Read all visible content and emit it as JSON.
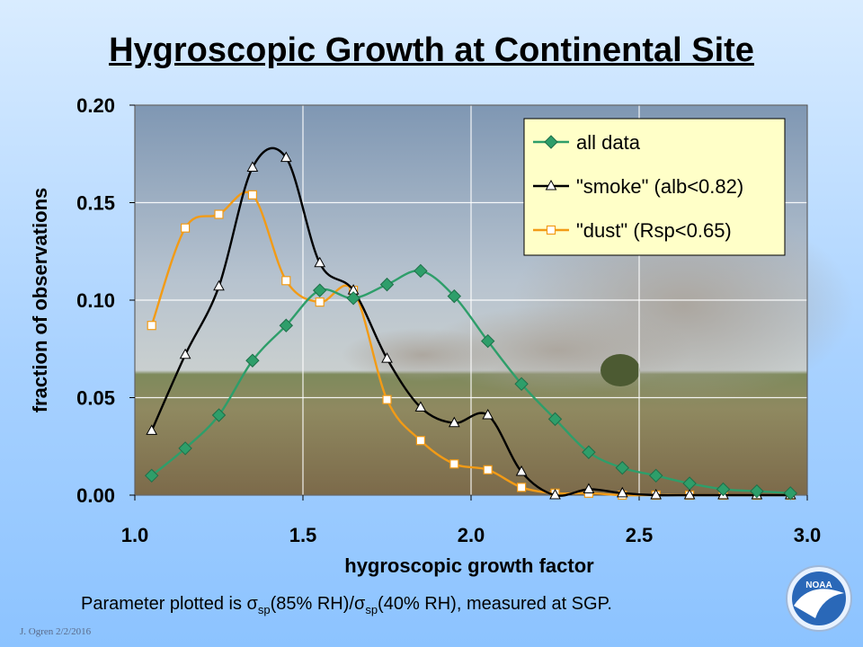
{
  "slide": {
    "title": "Hygroscopic Growth at Continental Site",
    "footnote": "Parameter plotted is σsp(85% RH)/σsp(40% RH), measured at SGP.",
    "footnote_parts": {
      "pre": "Parameter plotted is ",
      "sigma": "σ",
      "sub": "sp",
      "mid": "(85% RH)/",
      "post": "(40% RH), measured at SGP."
    },
    "author": "J. Ogren  2/2/2016",
    "logo_text": "NOAA"
  },
  "chart_data": {
    "type": "line",
    "xlabel": "hygroscopic growth factor",
    "ylabel": "fraction of observations",
    "xlim": [
      1.0,
      3.0
    ],
    "ylim": [
      0.0,
      0.2
    ],
    "xticks": [
      "1.0",
      "1.5",
      "2.0",
      "2.5",
      "3.0"
    ],
    "yticks": [
      "0.00",
      "0.05",
      "0.10",
      "0.15",
      "0.20"
    ],
    "grid": true,
    "legend_position": "top-right",
    "background": "photo of grassland with smoke plume",
    "series": [
      {
        "name": "all data",
        "color": "#2e9e6a",
        "marker": "diamond",
        "x": [
          1.05,
          1.15,
          1.25,
          1.35,
          1.45,
          1.55,
          1.65,
          1.75,
          1.85,
          1.95,
          2.05,
          2.15,
          2.25,
          2.35,
          2.45,
          2.55,
          2.65,
          2.75,
          2.85,
          2.95
        ],
        "y": [
          0.01,
          0.024,
          0.041,
          0.069,
          0.087,
          0.105,
          0.101,
          0.108,
          0.115,
          0.102,
          0.079,
          0.057,
          0.039,
          0.022,
          0.014,
          0.01,
          0.006,
          0.003,
          0.002,
          0.001
        ]
      },
      {
        "name": "\"smoke\" (alb<0.82)",
        "color": "#000000",
        "marker": "triangle",
        "x": [
          1.05,
          1.15,
          1.25,
          1.35,
          1.45,
          1.55,
          1.65,
          1.75,
          1.85,
          1.95,
          2.05,
          2.15,
          2.25,
          2.35,
          2.45,
          2.55,
          2.65,
          2.75,
          2.85,
          2.95
        ],
        "y": [
          0.033,
          0.072,
          0.107,
          0.168,
          0.173,
          0.119,
          0.105,
          0.07,
          0.045,
          0.037,
          0.041,
          0.012,
          0.0,
          0.003,
          0.001,
          0.0,
          0.0,
          0.0,
          0.0,
          0.0
        ]
      },
      {
        "name": "\"dust\" (Rsp<0.65)",
        "color": "#f29b16",
        "marker": "square",
        "x": [
          1.05,
          1.15,
          1.25,
          1.35,
          1.45,
          1.55,
          1.65,
          1.75,
          1.85,
          1.95,
          2.05,
          2.15,
          2.25,
          2.35,
          2.45,
          2.55,
          2.65,
          2.75,
          2.85,
          2.95
        ],
        "y": [
          0.087,
          0.137,
          0.144,
          0.154,
          0.11,
          0.099,
          0.105,
          0.049,
          0.028,
          0.016,
          0.013,
          0.004,
          0.001,
          0.001,
          0.0,
          0.0,
          0.0,
          0.0,
          0.0,
          0.0
        ]
      }
    ]
  }
}
